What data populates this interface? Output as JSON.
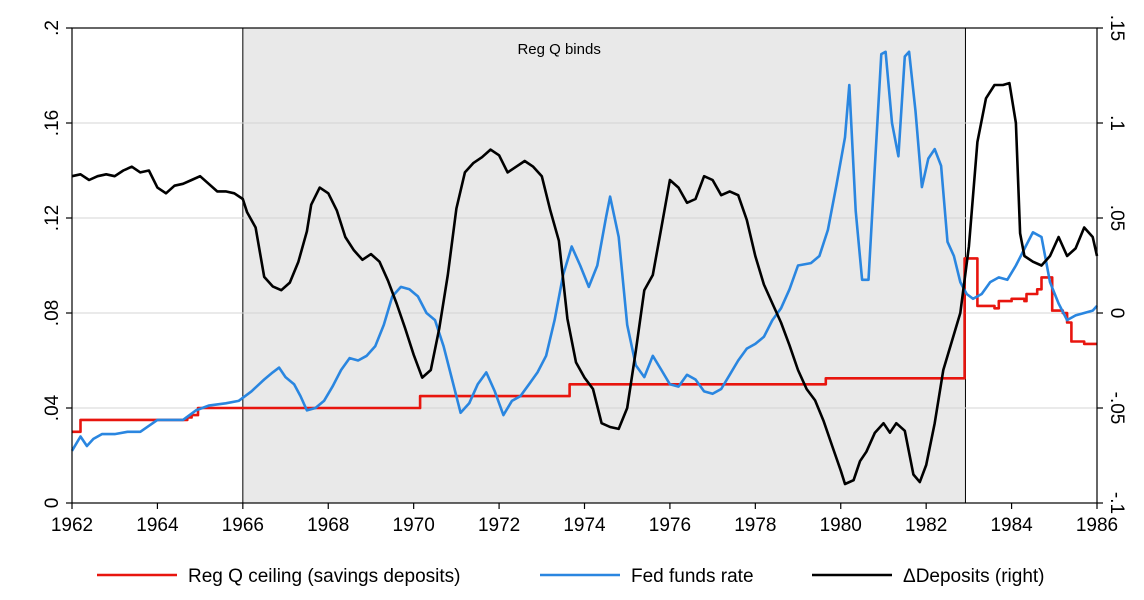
{
  "chart_data": {
    "type": "line",
    "title": "",
    "annotation": "Reg Q binds",
    "shaded_region": {
      "x_start": 1966.0,
      "x_end": 1982.92
    },
    "x_axis": {
      "label": "",
      "range": [
        1962,
        1986
      ],
      "ticks": [
        1962,
        1964,
        1966,
        1968,
        1970,
        1972,
        1974,
        1976,
        1978,
        1980,
        1982,
        1984,
        1986
      ],
      "tick_labels": [
        "1962",
        "1964",
        "1966",
        "1968",
        "1970",
        "1972",
        "1974",
        "1976",
        "1978",
        "1980",
        "1982",
        "1984",
        "1986"
      ]
    },
    "y_left": {
      "label": "",
      "range": [
        0,
        0.2
      ],
      "ticks": [
        0,
        0.04,
        0.08,
        0.12,
        0.16,
        0.2
      ],
      "tick_labels": [
        "0",
        ".04",
        ".08",
        ".12",
        ".16",
        ".2"
      ]
    },
    "y_right": {
      "label": "",
      "range": [
        -0.1,
        0.15
      ],
      "ticks": [
        -0.1,
        -0.05,
        0,
        0.05,
        0.1,
        0.15
      ],
      "tick_labels": [
        "-.1",
        "-.05",
        "0",
        ".05",
        ".1",
        ".15"
      ]
    },
    "grid": true,
    "legend_position": "bottom",
    "series": [
      {
        "name": "Reg Q ceiling (savings deposits)",
        "axis": "left",
        "color": "#e8150e",
        "step": true,
        "points": [
          [
            1962.0,
            0.03
          ],
          [
            1962.2,
            0.035
          ],
          [
            1964.4,
            0.035
          ],
          [
            1964.7,
            0.036
          ],
          [
            1964.8,
            0.037
          ],
          [
            1964.95,
            0.04
          ],
          [
            1970.1,
            0.04
          ],
          [
            1970.15,
            0.045
          ],
          [
            1973.6,
            0.045
          ],
          [
            1973.65,
            0.05
          ],
          [
            1979.6,
            0.05
          ],
          [
            1979.65,
            0.0525
          ],
          [
            1982.85,
            0.0525
          ],
          [
            1982.9,
            0.103
          ],
          [
            1983.15,
            0.103
          ],
          [
            1983.2,
            0.083
          ],
          [
            1983.6,
            0.082
          ],
          [
            1983.7,
            0.085
          ],
          [
            1984.0,
            0.086
          ],
          [
            1984.3,
            0.085
          ],
          [
            1984.35,
            0.088
          ],
          [
            1984.6,
            0.09
          ],
          [
            1984.7,
            0.095
          ],
          [
            1984.9,
            0.095
          ],
          [
            1984.95,
            0.081
          ],
          [
            1985.2,
            0.08
          ],
          [
            1985.3,
            0.076
          ],
          [
            1985.4,
            0.068
          ],
          [
            1985.6,
            0.068
          ],
          [
            1985.7,
            0.067
          ],
          [
            1986.0,
            0.067
          ]
        ]
      },
      {
        "name": "Fed funds rate",
        "axis": "left",
        "color": "#2a86e0",
        "step": false,
        "points": [
          [
            1962.0,
            0.022
          ],
          [
            1962.2,
            0.028
          ],
          [
            1962.35,
            0.024
          ],
          [
            1962.5,
            0.027
          ],
          [
            1962.7,
            0.029
          ],
          [
            1963.0,
            0.029
          ],
          [
            1963.3,
            0.03
          ],
          [
            1963.6,
            0.03
          ],
          [
            1964.0,
            0.035
          ],
          [
            1964.3,
            0.035
          ],
          [
            1964.6,
            0.035
          ],
          [
            1964.9,
            0.039
          ],
          [
            1965.2,
            0.041
          ],
          [
            1965.6,
            0.042
          ],
          [
            1965.9,
            0.043
          ],
          [
            1966.2,
            0.047
          ],
          [
            1966.5,
            0.052
          ],
          [
            1966.7,
            0.055
          ],
          [
            1966.85,
            0.057
          ],
          [
            1967.0,
            0.053
          ],
          [
            1967.2,
            0.05
          ],
          [
            1967.35,
            0.045
          ],
          [
            1967.5,
            0.039
          ],
          [
            1967.7,
            0.04
          ],
          [
            1967.9,
            0.043
          ],
          [
            1968.1,
            0.049
          ],
          [
            1968.3,
            0.056
          ],
          [
            1968.5,
            0.061
          ],
          [
            1968.7,
            0.06
          ],
          [
            1968.9,
            0.062
          ],
          [
            1969.1,
            0.066
          ],
          [
            1969.3,
            0.075
          ],
          [
            1969.5,
            0.087
          ],
          [
            1969.7,
            0.091
          ],
          [
            1969.9,
            0.09
          ],
          [
            1970.1,
            0.087
          ],
          [
            1970.3,
            0.08
          ],
          [
            1970.5,
            0.077
          ],
          [
            1970.7,
            0.066
          ],
          [
            1970.9,
            0.052
          ],
          [
            1971.1,
            0.038
          ],
          [
            1971.3,
            0.042
          ],
          [
            1971.5,
            0.05
          ],
          [
            1971.7,
            0.055
          ],
          [
            1971.9,
            0.047
          ],
          [
            1972.1,
            0.037
          ],
          [
            1972.3,
            0.043
          ],
          [
            1972.5,
            0.045
          ],
          [
            1972.7,
            0.05
          ],
          [
            1972.9,
            0.055
          ],
          [
            1973.1,
            0.062
          ],
          [
            1973.3,
            0.077
          ],
          [
            1973.5,
            0.096
          ],
          [
            1973.7,
            0.108
          ],
          [
            1973.9,
            0.1
          ],
          [
            1974.1,
            0.091
          ],
          [
            1974.3,
            0.1
          ],
          [
            1974.5,
            0.12
          ],
          [
            1974.6,
            0.129
          ],
          [
            1974.8,
            0.112
          ],
          [
            1975.0,
            0.075
          ],
          [
            1975.2,
            0.058
          ],
          [
            1975.4,
            0.053
          ],
          [
            1975.6,
            0.062
          ],
          [
            1975.8,
            0.056
          ],
          [
            1976.0,
            0.05
          ],
          [
            1976.2,
            0.049
          ],
          [
            1976.4,
            0.054
          ],
          [
            1976.6,
            0.052
          ],
          [
            1976.8,
            0.047
          ],
          [
            1977.0,
            0.046
          ],
          [
            1977.2,
            0.048
          ],
          [
            1977.4,
            0.054
          ],
          [
            1977.6,
            0.06
          ],
          [
            1977.8,
            0.065
          ],
          [
            1978.0,
            0.067
          ],
          [
            1978.2,
            0.07
          ],
          [
            1978.4,
            0.077
          ],
          [
            1978.6,
            0.082
          ],
          [
            1978.8,
            0.09
          ],
          [
            1979.0,
            0.1
          ],
          [
            1979.3,
            0.101
          ],
          [
            1979.5,
            0.104
          ],
          [
            1979.7,
            0.115
          ],
          [
            1979.9,
            0.134
          ],
          [
            1980.1,
            0.154
          ],
          [
            1980.2,
            0.176
          ],
          [
            1980.35,
            0.123
          ],
          [
            1980.5,
            0.094
          ],
          [
            1980.65,
            0.094
          ],
          [
            1980.8,
            0.142
          ],
          [
            1980.95,
            0.189
          ],
          [
            1981.05,
            0.19
          ],
          [
            1981.2,
            0.16
          ],
          [
            1981.35,
            0.146
          ],
          [
            1981.5,
            0.188
          ],
          [
            1981.6,
            0.19
          ],
          [
            1981.75,
            0.165
          ],
          [
            1981.9,
            0.133
          ],
          [
            1982.05,
            0.145
          ],
          [
            1982.2,
            0.149
          ],
          [
            1982.35,
            0.142
          ],
          [
            1982.5,
            0.11
          ],
          [
            1982.65,
            0.104
          ],
          [
            1982.8,
            0.093
          ],
          [
            1982.95,
            0.088
          ],
          [
            1983.1,
            0.086
          ],
          [
            1983.3,
            0.088
          ],
          [
            1983.5,
            0.093
          ],
          [
            1983.7,
            0.095
          ],
          [
            1983.9,
            0.094
          ],
          [
            1984.1,
            0.1
          ],
          [
            1984.3,
            0.107
          ],
          [
            1984.5,
            0.114
          ],
          [
            1984.7,
            0.112
          ],
          [
            1984.9,
            0.093
          ],
          [
            1985.1,
            0.084
          ],
          [
            1985.3,
            0.077
          ],
          [
            1985.5,
            0.079
          ],
          [
            1985.7,
            0.08
          ],
          [
            1985.9,
            0.081
          ],
          [
            1986.0,
            0.083
          ]
        ]
      },
      {
        "name": "ΔDeposits (right)",
        "axis": "right",
        "color": "#000000",
        "step": false,
        "points": [
          [
            1962.0,
            0.072
          ],
          [
            1962.2,
            0.073
          ],
          [
            1962.4,
            0.07
          ],
          [
            1962.6,
            0.072
          ],
          [
            1962.8,
            0.073
          ],
          [
            1963.0,
            0.072
          ],
          [
            1963.2,
            0.075
          ],
          [
            1963.4,
            0.077
          ],
          [
            1963.6,
            0.074
          ],
          [
            1963.8,
            0.075
          ],
          [
            1964.0,
            0.066
          ],
          [
            1964.2,
            0.063
          ],
          [
            1964.4,
            0.067
          ],
          [
            1964.6,
            0.068
          ],
          [
            1964.8,
            0.07
          ],
          [
            1965.0,
            0.072
          ],
          [
            1965.2,
            0.068
          ],
          [
            1965.4,
            0.064
          ],
          [
            1965.6,
            0.064
          ],
          [
            1965.8,
            0.063
          ],
          [
            1966.0,
            0.06
          ],
          [
            1966.1,
            0.053
          ],
          [
            1966.3,
            0.045
          ],
          [
            1966.5,
            0.019
          ],
          [
            1966.7,
            0.014
          ],
          [
            1966.9,
            0.012
          ],
          [
            1967.1,
            0.016
          ],
          [
            1967.3,
            0.027
          ],
          [
            1967.5,
            0.043
          ],
          [
            1967.6,
            0.057
          ],
          [
            1967.8,
            0.066
          ],
          [
            1968.0,
            0.063
          ],
          [
            1968.2,
            0.054
          ],
          [
            1968.4,
            0.04
          ],
          [
            1968.6,
            0.033
          ],
          [
            1968.8,
            0.028
          ],
          [
            1969.0,
            0.031
          ],
          [
            1969.2,
            0.027
          ],
          [
            1969.4,
            0.017
          ],
          [
            1969.6,
            0.005
          ],
          [
            1969.8,
            -0.008
          ],
          [
            1970.0,
            -0.022
          ],
          [
            1970.2,
            -0.034
          ],
          [
            1970.4,
            -0.03
          ],
          [
            1970.6,
            -0.008
          ],
          [
            1970.8,
            0.02
          ],
          [
            1971.0,
            0.055
          ],
          [
            1971.2,
            0.074
          ],
          [
            1971.4,
            0.079
          ],
          [
            1971.6,
            0.082
          ],
          [
            1971.8,
            0.086
          ],
          [
            1972.0,
            0.083
          ],
          [
            1972.2,
            0.074
          ],
          [
            1972.4,
            0.077
          ],
          [
            1972.6,
            0.08
          ],
          [
            1972.8,
            0.077
          ],
          [
            1973.0,
            0.072
          ],
          [
            1973.2,
            0.054
          ],
          [
            1973.4,
            0.038
          ],
          [
            1973.6,
            -0.003
          ],
          [
            1973.8,
            -0.026
          ],
          [
            1974.0,
            -0.034
          ],
          [
            1974.2,
            -0.04
          ],
          [
            1974.4,
            -0.058
          ],
          [
            1974.6,
            -0.06
          ],
          [
            1974.8,
            -0.061
          ],
          [
            1975.0,
            -0.05
          ],
          [
            1975.2,
            -0.02
          ],
          [
            1975.4,
            0.012
          ],
          [
            1975.6,
            0.02
          ],
          [
            1975.8,
            0.045
          ],
          [
            1976.0,
            0.07
          ],
          [
            1976.2,
            0.066
          ],
          [
            1976.4,
            0.058
          ],
          [
            1976.6,
            0.06
          ],
          [
            1976.8,
            0.072
          ],
          [
            1977.0,
            0.07
          ],
          [
            1977.2,
            0.062
          ],
          [
            1977.4,
            0.064
          ],
          [
            1977.6,
            0.062
          ],
          [
            1977.8,
            0.049
          ],
          [
            1978.0,
            0.03
          ],
          [
            1978.2,
            0.015
          ],
          [
            1978.4,
            0.005
          ],
          [
            1978.6,
            -0.005
          ],
          [
            1978.8,
            -0.017
          ],
          [
            1979.0,
            -0.03
          ],
          [
            1979.2,
            -0.04
          ],
          [
            1979.4,
            -0.046
          ],
          [
            1979.6,
            -0.057
          ],
          [
            1979.8,
            -0.07
          ],
          [
            1980.0,
            -0.083
          ],
          [
            1980.1,
            -0.09
          ],
          [
            1980.3,
            -0.088
          ],
          [
            1980.45,
            -0.078
          ],
          [
            1980.6,
            -0.073
          ],
          [
            1980.8,
            -0.063
          ],
          [
            1981.0,
            -0.058
          ],
          [
            1981.15,
            -0.063
          ],
          [
            1981.3,
            -0.058
          ],
          [
            1981.5,
            -0.062
          ],
          [
            1981.7,
            -0.085
          ],
          [
            1981.85,
            -0.089
          ],
          [
            1982.0,
            -0.08
          ],
          [
            1982.2,
            -0.058
          ],
          [
            1982.4,
            -0.03
          ],
          [
            1982.6,
            -0.015
          ],
          [
            1982.8,
            0.0
          ],
          [
            1983.0,
            0.035
          ],
          [
            1983.2,
            0.09
          ],
          [
            1983.4,
            0.113
          ],
          [
            1983.6,
            0.12
          ],
          [
            1983.8,
            0.12
          ],
          [
            1983.95,
            0.121
          ],
          [
            1984.1,
            0.1
          ],
          [
            1984.2,
            0.042
          ],
          [
            1984.3,
            0.03
          ],
          [
            1984.5,
            0.027
          ],
          [
            1984.7,
            0.025
          ],
          [
            1984.9,
            0.03
          ],
          [
            1985.1,
            0.04
          ],
          [
            1985.3,
            0.03
          ],
          [
            1985.5,
            0.034
          ],
          [
            1985.7,
            0.045
          ],
          [
            1985.9,
            0.04
          ],
          [
            1986.0,
            0.03
          ]
        ]
      }
    ]
  }
}
